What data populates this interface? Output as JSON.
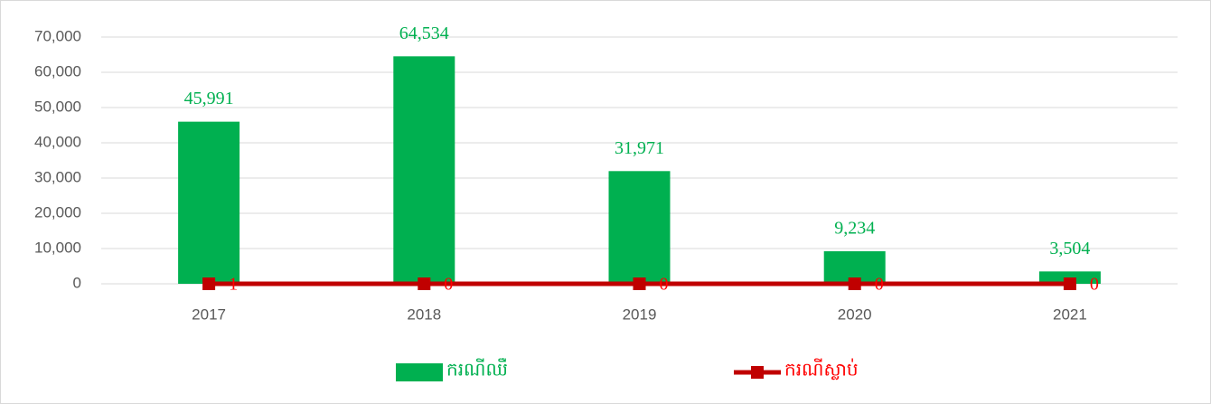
{
  "chart_data": {
    "type": "combo",
    "categories": [
      "2017",
      "2018",
      "2019",
      "2020",
      "2021"
    ],
    "series": [
      {
        "name": "ករណីឈឺ",
        "type": "bar",
        "color": "#00b050",
        "values": [
          45991,
          64534,
          31971,
          9234,
          3504
        ],
        "value_labels": [
          "45,991",
          "64,534",
          "31,971",
          "9,234",
          "3,504"
        ]
      },
      {
        "name": "ករណីស្លាប់",
        "type": "line",
        "color": "#c00000",
        "values": [
          1,
          0,
          0,
          0,
          0
        ]
      }
    ],
    "ylim": [
      0,
      70000
    ],
    "yticks": [
      0,
      {
        "value": 10000,
        "label": "10,000"
      },
      {
        "value": 20000,
        "label": "20,000"
      },
      {
        "value": 30000,
        "label": "30,000"
      },
      {
        "value": 40000,
        "label": "40,000"
      },
      {
        "value": 50000,
        "label": "50,000"
      },
      {
        "value": 60000,
        "label": "60,000"
      },
      {
        "value": 70000,
        "label": "70,000"
      }
    ],
    "grid": true,
    "legend": "bottom"
  }
}
